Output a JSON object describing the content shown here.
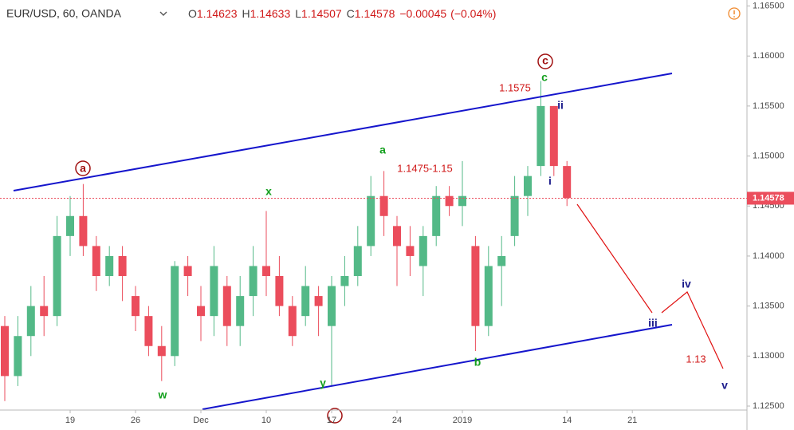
{
  "chart_data": {
    "type": "candlestick",
    "symbol": "EUR/USD, 60, OANDA",
    "header": {
      "o_label": "O",
      "open": 1.14623,
      "h_label": "H",
      "high": 1.14633,
      "l_label": "L",
      "low": 1.14507,
      "c_label": "C",
      "close": 1.14578,
      "change": "−0.00045",
      "change_pct": "(−0.04%)"
    },
    "categories": [
      null,
      null,
      null,
      null,
      null,
      "19",
      null,
      null,
      null,
      null,
      "26",
      null,
      null,
      null,
      null,
      "Dec",
      null,
      null,
      null,
      null,
      "10",
      null,
      null,
      null,
      null,
      "17",
      null,
      null,
      null,
      null,
      "24",
      null,
      null,
      null,
      null,
      "2019",
      null,
      null,
      null,
      null,
      null,
      null,
      null,
      "14",
      null,
      null,
      null,
      null,
      "21"
    ],
    "open": [
      1.133,
      1.128,
      1.132,
      1.135,
      1.134,
      1.142,
      1.144,
      1.141,
      1.138,
      1.14,
      1.136,
      1.134,
      1.131,
      1.13,
      1.139,
      1.135,
      1.134,
      1.137,
      1.133,
      1.136,
      1.139,
      1.138,
      1.135,
      1.134,
      1.136,
      1.133,
      1.137,
      1.138,
      1.141,
      1.146,
      1.143,
      1.141,
      1.139,
      1.142,
      1.146,
      1.145,
      1.141,
      1.133,
      1.139,
      1.142,
      1.146,
      1.149,
      1.155,
      1.149,
      null,
      null,
      null,
      null,
      null
    ],
    "high": [
      1.134,
      1.134,
      1.137,
      1.138,
      1.144,
      1.146,
      1.1472,
      1.142,
      1.141,
      1.141,
      1.137,
      1.135,
      1.133,
      1.1395,
      1.14,
      1.137,
      1.141,
      1.138,
      1.138,
      1.141,
      1.1445,
      1.14,
      1.136,
      1.139,
      1.137,
      1.138,
      1.14,
      1.143,
      1.148,
      1.1485,
      1.144,
      1.143,
      1.143,
      1.147,
      1.147,
      1.1495,
      1.142,
      1.141,
      1.142,
      1.148,
      1.149,
      1.1575,
      1.155,
      1.1495,
      null,
      null,
      null,
      null,
      null
    ],
    "low": [
      1.1255,
      1.127,
      1.13,
      1.132,
      1.133,
      1.14,
      1.14,
      1.1365,
      1.137,
      1.1355,
      1.1325,
      1.13,
      1.1275,
      1.129,
      1.136,
      1.1315,
      1.132,
      1.131,
      1.131,
      1.134,
      1.136,
      1.134,
      1.131,
      1.133,
      1.132,
      1.127,
      1.135,
      1.137,
      1.14,
      1.142,
      1.137,
      1.138,
      1.136,
      1.141,
      1.144,
      1.143,
      1.1305,
      1.132,
      1.135,
      1.141,
      1.144,
      1.148,
      1.148,
      1.145,
      null,
      null,
      null,
      null,
      null
    ],
    "close": [
      1.128,
      1.132,
      1.135,
      1.134,
      1.142,
      1.144,
      1.141,
      1.138,
      1.14,
      1.138,
      1.134,
      1.131,
      1.13,
      1.139,
      1.138,
      1.134,
      1.139,
      1.133,
      1.136,
      1.139,
      1.138,
      1.135,
      1.132,
      1.137,
      1.135,
      1.137,
      1.138,
      1.141,
      1.146,
      1.144,
      1.141,
      1.14,
      1.142,
      1.146,
      1.145,
      1.146,
      1.133,
      1.139,
      1.14,
      1.146,
      1.148,
      1.155,
      1.149,
      1.1458,
      null,
      null,
      null,
      null,
      null
    ],
    "up_color": "#53b987",
    "down_color": "#eb4d5c",
    "ylim": [
      1.1246,
      1.1656
    ],
    "yticks": [
      {
        "value": 1.125,
        "label": "1.12500"
      },
      {
        "value": 1.13,
        "label": "1.13000"
      },
      {
        "value": 1.135,
        "label": "1.13500"
      },
      {
        "value": 1.14,
        "label": "1.14000"
      },
      {
        "value": 1.145,
        "label": "1.14500"
      },
      {
        "value": 1.15,
        "label": "1.15000"
      },
      {
        "value": 1.155,
        "label": "1.15500"
      },
      {
        "value": 1.16,
        "label": "1.16000"
      },
      {
        "value": 1.165,
        "label": "1.16500"
      }
    ],
    "last_price": {
      "value": 1.14578,
      "label": "1.14578",
      "color": "#eb4d5c"
    },
    "annotations": [
      "a",
      "c",
      "a",
      "x",
      "w",
      "y",
      "b",
      "c",
      "1.1575",
      "1.1475-1.15",
      "i",
      "ii",
      "iii",
      "iv",
      "v",
      "1.13"
    ]
  }
}
